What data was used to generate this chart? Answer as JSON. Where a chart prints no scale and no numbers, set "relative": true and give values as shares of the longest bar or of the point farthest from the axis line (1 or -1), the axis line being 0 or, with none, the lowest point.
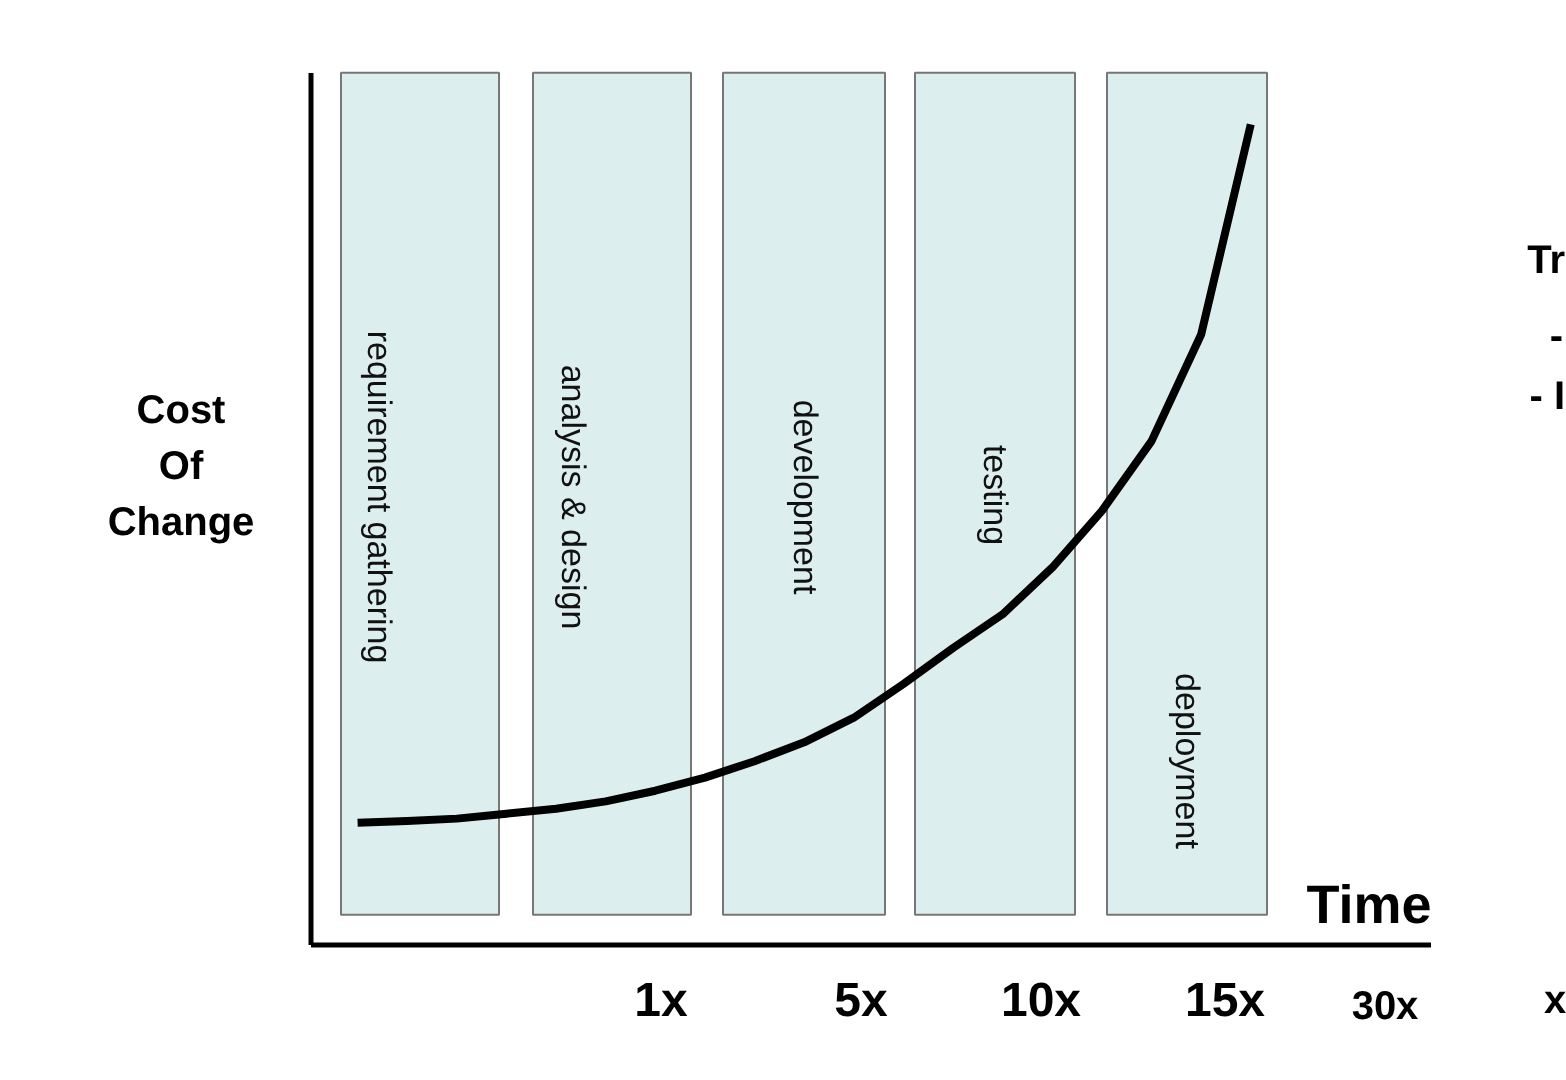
{
  "chart_data": {
    "type": "line",
    "relative": true,
    "ylabel": "Cost Of Change",
    "xlabel": "Time",
    "categories": [
      null,
      null,
      null,
      null,
      null,
      null,
      null,
      null,
      null,
      null,
      null,
      null,
      null,
      null,
      null,
      null,
      null,
      null,
      null
    ],
    "series": [
      {
        "color": "#000000",
        "values": [
          0.149,
          0.151,
          0.154,
          0.16,
          0.166,
          0.175,
          0.188,
          0.204,
          0.224,
          0.247,
          0.277,
          0.318,
          0.362,
          0.403,
          0.46,
          0.529,
          0.614,
          0.744,
          1.0
        ]
      }
    ],
    "annotations": [
      "requirement gathering",
      "analysis & design",
      "development",
      "testing",
      "deployment",
      "1x",
      "5x",
      "10x",
      "15x",
      "30x",
      "x",
      "Tr",
      "-",
      "- I"
    ],
    "grid": false,
    "marker": "none",
    "line_style": "solid"
  }
}
